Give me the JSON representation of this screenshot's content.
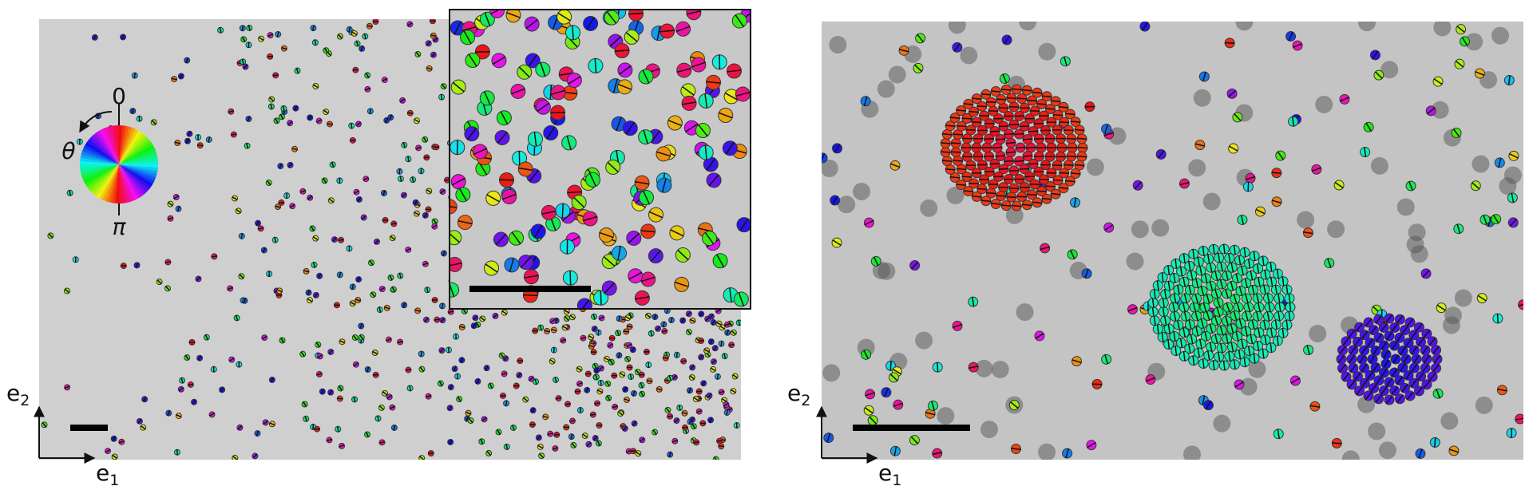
{
  "left_panel": {
    "color_wheel": {
      "top_label": "0",
      "angle_label": "θ",
      "bottom_label": "π"
    },
    "axes": {
      "vertical": {
        "base": "e",
        "sub": "2"
      },
      "horizontal": {
        "base": "e",
        "sub": "1"
      }
    }
  },
  "right_panel": {
    "axes": {
      "vertical": {
        "base": "e",
        "sub": "2"
      },
      "horizontal": {
        "base": "e",
        "sub": "1"
      }
    }
  }
}
